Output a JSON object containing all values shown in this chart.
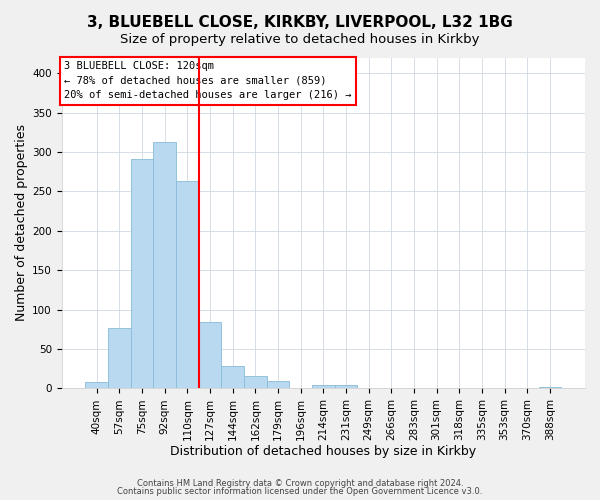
{
  "title": "3, BLUEBELL CLOSE, KIRKBY, LIVERPOOL, L32 1BG",
  "subtitle": "Size of property relative to detached houses in Kirkby",
  "xlabel": "Distribution of detached houses by size in Kirkby",
  "ylabel": "Number of detached properties",
  "bar_labels": [
    "40sqm",
    "57sqm",
    "75sqm",
    "92sqm",
    "110sqm",
    "127sqm",
    "144sqm",
    "162sqm",
    "179sqm",
    "196sqm",
    "214sqm",
    "231sqm",
    "249sqm",
    "266sqm",
    "283sqm",
    "301sqm",
    "318sqm",
    "335sqm",
    "353sqm",
    "370sqm",
    "388sqm"
  ],
  "bar_values": [
    8,
    77,
    291,
    313,
    263,
    85,
    29,
    16,
    9,
    0,
    5,
    4,
    0,
    0,
    0,
    0,
    0,
    0,
    0,
    0,
    2
  ],
  "bar_color": "#b8d9ef",
  "bar_edge_color": "#89bcd8",
  "vline_x": 4.5,
  "vline_color": "red",
  "ylim": [
    0,
    420
  ],
  "yticks": [
    0,
    50,
    100,
    150,
    200,
    250,
    300,
    350,
    400
  ],
  "annotation_title": "3 BLUEBELL CLOSE: 120sqm",
  "annotation_line1": "← 78% of detached houses are smaller (859)",
  "annotation_line2": "20% of semi-detached houses are larger (216) →",
  "footer_line1": "Contains HM Land Registry data © Crown copyright and database right 2024.",
  "footer_line2": "Contains public sector information licensed under the Open Government Licence v3.0.",
  "bg_color": "#f0f0f0",
  "plot_bg_color": "#ffffff",
  "title_fontsize": 11,
  "subtitle_fontsize": 9.5,
  "axis_label_fontsize": 9,
  "tick_fontsize": 7.5,
  "footer_fontsize": 6
}
